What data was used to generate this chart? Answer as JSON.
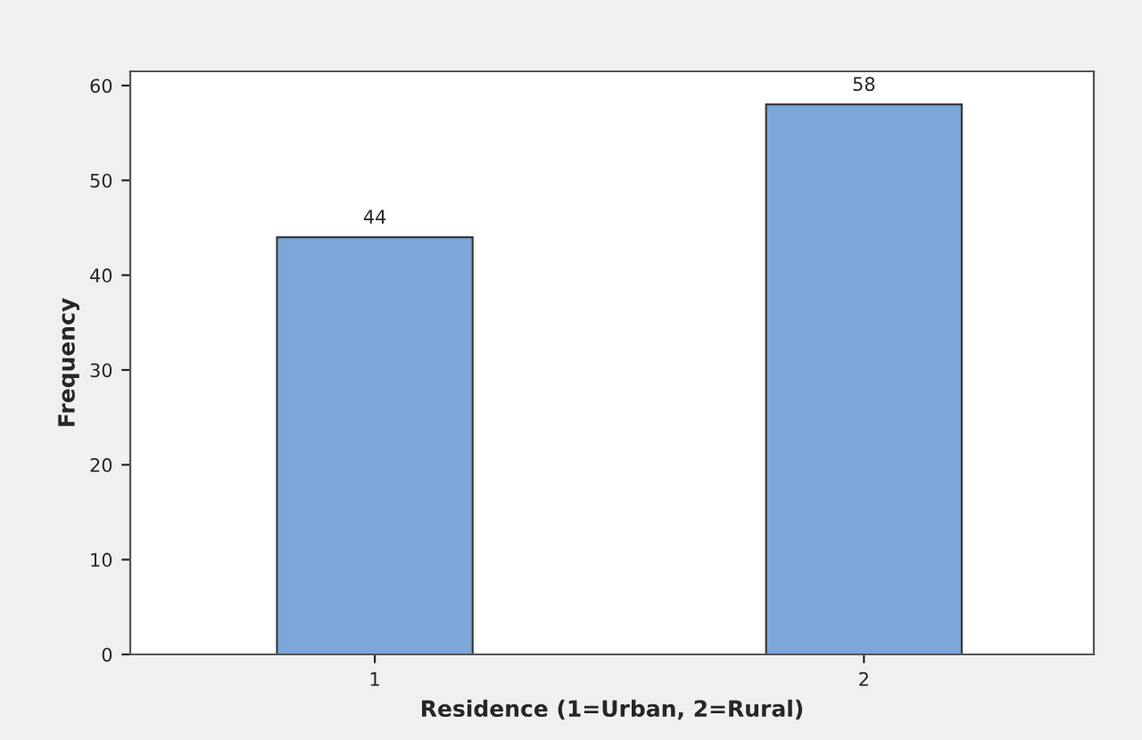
{
  "chart_data": {
    "type": "bar",
    "xlabel": "Residence (1=Urban, 2=Rural)",
    "ylabel": "Frequency",
    "categories": [
      "1",
      "2"
    ],
    "series": [
      {
        "color": "#7ba7d9",
        "values": [
          44,
          58
        ]
      }
    ],
    "ylim": [
      0,
      61.5
    ],
    "yticks": [
      0,
      10,
      20,
      30,
      40,
      50,
      60
    ],
    "data_labels": true,
    "grid": false,
    "legend": false
  }
}
